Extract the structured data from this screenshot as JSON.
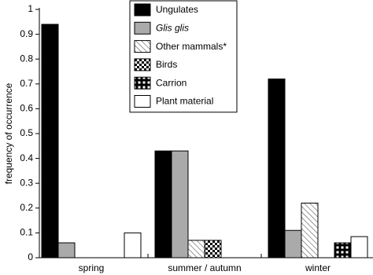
{
  "chart_data": {
    "type": "bar",
    "y_label": "frequency of occurrence",
    "categories": [
      "spring",
      "summer / autumn",
      "winter"
    ],
    "series": [
      {
        "name": "Ungulates",
        "color": "#000000",
        "values": [
          0.94,
          0.43,
          0.72
        ]
      },
      {
        "name": "Glis glis",
        "color": "#aaaaaa",
        "italic": true,
        "values": [
          0.06,
          0.43,
          0.11
        ]
      },
      {
        "name": "Other mammals*",
        "color": "#ffffff",
        "pattern": "hatch",
        "values": [
          0,
          0.07,
          0.22
        ]
      },
      {
        "name": "Birds",
        "color": "#ffffff",
        "pattern": "checker",
        "values": [
          0,
          0.07,
          0
        ]
      },
      {
        "name": "Carrion",
        "color": "#ffffff",
        "pattern": "grid",
        "values": [
          0,
          0,
          0.06
        ]
      },
      {
        "name": "Plant material",
        "color": "#ffffff",
        "values": [
          0.1,
          0,
          0.085
        ]
      }
    ],
    "ylim": [
      0,
      1
    ],
    "yticks": [
      0,
      0.1,
      0.2,
      0.3,
      0.4,
      0.5,
      0.6,
      0.7,
      0.8,
      0.9,
      1
    ],
    "grid": false,
    "legend": "top"
  }
}
